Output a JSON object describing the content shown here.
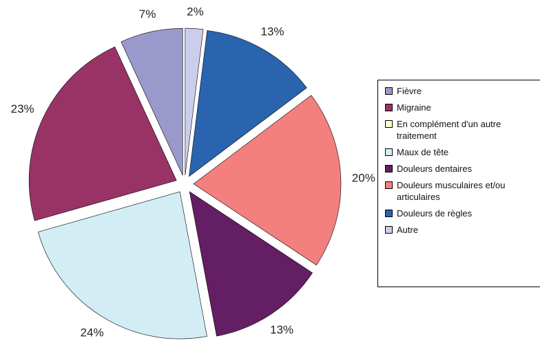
{
  "chart_data": {
    "type": "pie",
    "categories": [
      "Fièvre",
      "Migraine",
      "En complément d'un autre traitement",
      "Maux de tête",
      "Douleurs dentaires",
      "Douleurs musculaires et/ou articulaires",
      "Douleurs de règles",
      "Autre"
    ],
    "values": [
      7,
      23,
      0,
      24,
      13,
      20,
      13,
      2
    ],
    "value_labels": [
      "7%",
      "23%",
      null,
      "24%",
      "13%",
      "20%",
      "13%",
      "2%"
    ],
    "colors": [
      "#9999cc",
      "#993366",
      "#ffffcc",
      "#d2eef4",
      "#641e64",
      "#f37f7f",
      "#2a63ae",
      "#ccccec"
    ],
    "legend": "right"
  }
}
